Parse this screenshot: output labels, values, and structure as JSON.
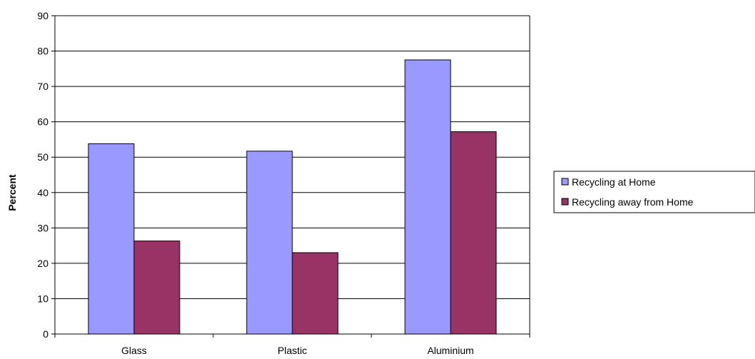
{
  "chart_data": {
    "type": "bar",
    "title": "",
    "xlabel": "",
    "ylabel": "Percent",
    "categories": [
      "Glass",
      "Plastic",
      "Aluminium"
    ],
    "series": [
      {
        "name": "Recycling at Home",
        "values": [
          53.8,
          51.7,
          77.5
        ],
        "color": "#9999FF"
      },
      {
        "name": "Recycling away from Home",
        "values": [
          26.3,
          23.0,
          57.2
        ],
        "color": "#993366"
      }
    ],
    "ylim": [
      0,
      90
    ],
    "ytick_step": 10,
    "yticks": [
      "0",
      "10",
      "20",
      "30",
      "40",
      "50",
      "60",
      "70",
      "80",
      "90"
    ],
    "grid": true,
    "legend_position": "right"
  }
}
